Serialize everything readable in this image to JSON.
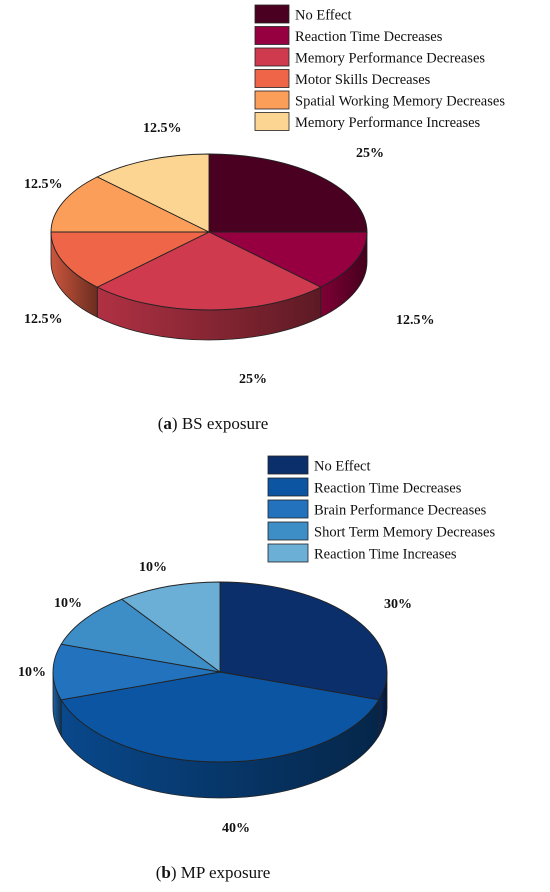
{
  "chart_data": [
    {
      "type": "pie",
      "style": "3d",
      "caption_letter": "a",
      "caption_text": "BS exposure",
      "slices": [
        {
          "label": "No Effect",
          "value": 25,
          "display": "25%",
          "color": "#4a0020"
        },
        {
          "label": "Reaction Time Decreases",
          "value": 12.5,
          "display": "12.5%",
          "color": "#960040"
        },
        {
          "label": "Memory Performance Decreases",
          "value": 25,
          "display": "25%",
          "color": "#cf3a4f"
        },
        {
          "label": "Motor Skills Decreases",
          "value": 12.5,
          "display": "12.5%",
          "color": "#ef6548"
        },
        {
          "label": "Spatial Working Memory Decreases",
          "value": 12.5,
          "display": "12.5%",
          "color": "#fb9e5a"
        },
        {
          "label": "Memory Performance Increases",
          "value": 12.5,
          "display": "12.5%",
          "color": "#fdd592"
        }
      ]
    },
    {
      "type": "pie",
      "style": "3d",
      "caption_letter": "b",
      "caption_text": "MP exposure",
      "slices": [
        {
          "label": "No Effect",
          "value": 30,
          "display": "30%",
          "color": "#0a2f6b"
        },
        {
          "label": "Reaction Time Decreases",
          "value": 40,
          "display": "40%",
          "color": "#0b55a3"
        },
        {
          "label": "Brain Performance Decreases",
          "value": 10,
          "display": "10%",
          "color": "#2372bd"
        },
        {
          "label": "Short Term Memory Decreases",
          "value": 10,
          "display": "10%",
          "color": "#3d8ec6"
        },
        {
          "label": "Reaction Time Increases",
          "value": 10,
          "display": "10%",
          "color": "#6baed6"
        }
      ]
    }
  ]
}
